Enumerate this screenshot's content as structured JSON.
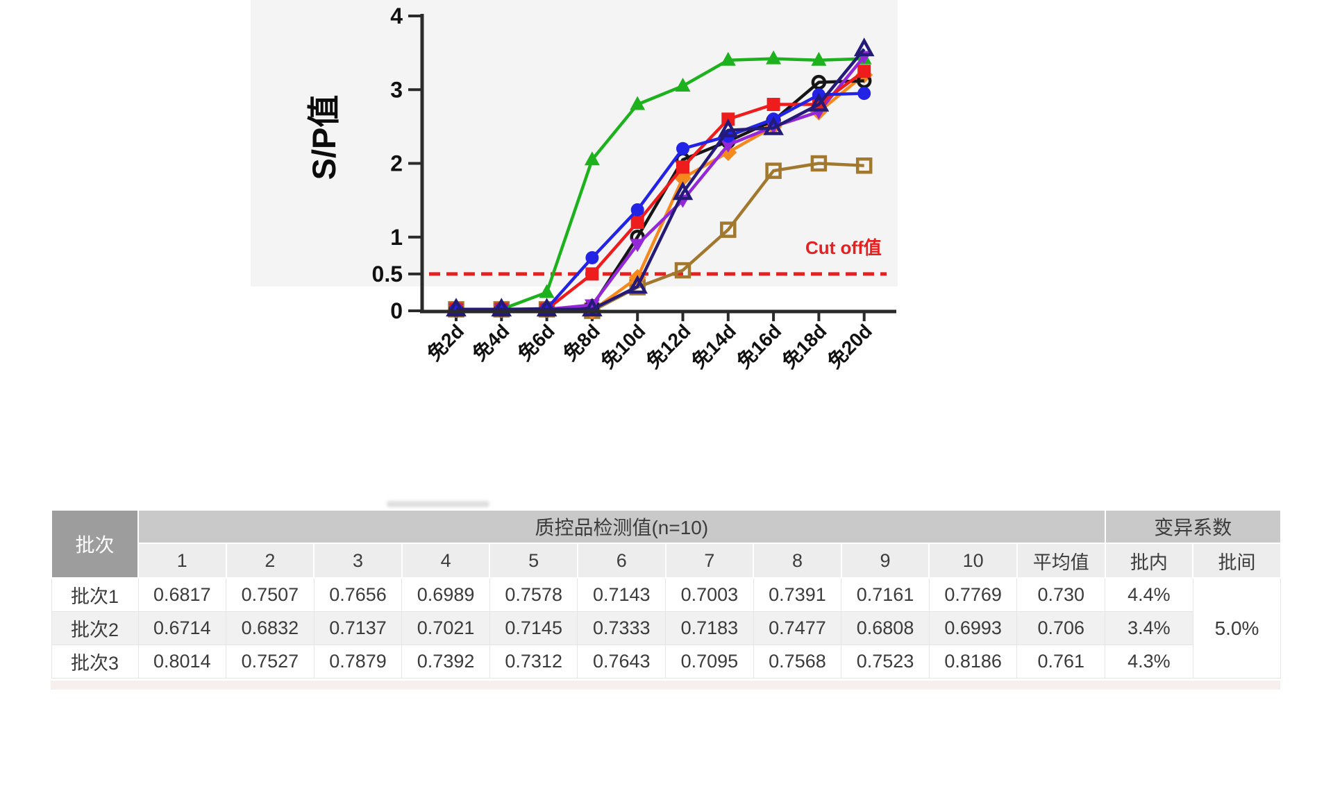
{
  "chart_data": {
    "type": "line",
    "x": [
      "免2d",
      "免4d",
      "免6d",
      "免8d",
      "免10d",
      "免12d",
      "免14d",
      "免16d",
      "免18d",
      "免20d"
    ],
    "ylabel": "S/P值",
    "ylim": [
      0,
      4
    ],
    "yticks": [
      {
        "v": 0,
        "label": "0"
      },
      {
        "v": 0.5,
        "label": "0.5"
      },
      {
        "v": 1,
        "label": "1"
      },
      {
        "v": 2,
        "label": "2"
      },
      {
        "v": 3,
        "label": "3"
      },
      {
        "v": 4,
        "label": "4"
      }
    ],
    "grid": false,
    "legend_position": "none",
    "cutoff_line": {
      "y": 0.5,
      "label": "Cut off值",
      "style": "dashed",
      "color": "#e42020"
    },
    "panel_bg": "#f4f4f4",
    "axis_color": "#2a2a2a",
    "draw_order": [
      7,
      4,
      3,
      0,
      5,
      1,
      2,
      6
    ],
    "series": [
      {
        "name": "series-green-triangle",
        "color": "#1db21d",
        "marker": "triangle-up-filled",
        "values": [
          0.02,
          0.02,
          0.25,
          2.05,
          2.8,
          3.05,
          3.4,
          3.42,
          3.4,
          3.42
        ]
      },
      {
        "name": "series-red-square",
        "color": "#ee1c1c",
        "marker": "square-filled",
        "values": [
          0.02,
          0.02,
          0.02,
          0.5,
          1.2,
          1.95,
          2.6,
          2.8,
          2.8,
          3.25
        ]
      },
      {
        "name": "series-blue-circle",
        "color": "#2323e6",
        "marker": "circle-filled",
        "values": [
          0.02,
          0.02,
          0.03,
          0.72,
          1.37,
          2.2,
          2.37,
          2.6,
          2.93,
          2.95
        ]
      },
      {
        "name": "series-black-open-circle",
        "color": "#161616",
        "marker": "circle-open",
        "values": [
          0.02,
          0.02,
          0.02,
          0.06,
          1.0,
          2.05,
          2.3,
          2.58,
          3.1,
          3.12
        ]
      },
      {
        "name": "series-orange-diamond",
        "color": "#f5891d",
        "marker": "diamond-filled",
        "values": [
          0.02,
          0.02,
          0.02,
          0.0,
          0.45,
          1.8,
          2.15,
          2.5,
          2.7,
          3.2
        ]
      },
      {
        "name": "series-purple-triangle-down",
        "color": "#9428d8",
        "marker": "triangle-down-filled",
        "values": [
          0.02,
          0.02,
          0.02,
          0.08,
          0.9,
          1.5,
          2.25,
          2.5,
          2.7,
          3.45
        ]
      },
      {
        "name": "series-navy-open-triangle",
        "color": "#241a78",
        "marker": "triangle-up-open",
        "values": [
          0.02,
          0.02,
          0.02,
          0.02,
          0.33,
          1.6,
          2.45,
          2.48,
          2.8,
          3.55
        ]
      },
      {
        "name": "series-brown-open-square",
        "color": "#a1782e",
        "marker": "square-open",
        "values": [
          0.02,
          0.02,
          0.02,
          0.0,
          0.32,
          0.55,
          1.1,
          1.9,
          2.0,
          1.97
        ]
      }
    ]
  },
  "table": {
    "corner_header": "批次",
    "values_group_header": "质控品检测值(n=10)",
    "cv_group_header": "变异系数",
    "sub_headers": [
      "1",
      "2",
      "3",
      "4",
      "5",
      "6",
      "7",
      "8",
      "9",
      "10",
      "平均值",
      "批内",
      "批间"
    ],
    "rows": [
      {
        "label": "批次1",
        "values": [
          "0.6817",
          "0.7507",
          "0.7656",
          "0.6989",
          "0.7578",
          "0.7143",
          "0.7003",
          "0.7391",
          "0.7161",
          "0.7769"
        ],
        "mean": "0.730",
        "cv_intra": "4.4%"
      },
      {
        "label": "批次2",
        "values": [
          "0.6714",
          "0.6832",
          "0.7137",
          "0.7021",
          "0.7145",
          "0.7333",
          "0.7183",
          "0.7477",
          "0.6808",
          "0.6993"
        ],
        "mean": "0.706",
        "cv_intra": "3.4%"
      },
      {
        "label": "批次3",
        "values": [
          "0.8014",
          "0.7527",
          "0.7879",
          "0.7392",
          "0.7312",
          "0.7643",
          "0.7095",
          "0.7568",
          "0.7523",
          "0.8186"
        ],
        "mean": "0.761",
        "cv_intra": "4.3%"
      }
    ],
    "cv_inter": "5.0%"
  },
  "colors": {
    "table_corner_bg": "#9d9d9d",
    "table_group_bg": "#c9c9c9",
    "table_subheader_bg": "#ededed",
    "table_row_alt_bg": "#f1f1f1",
    "cutoff_red": "#e42020"
  }
}
